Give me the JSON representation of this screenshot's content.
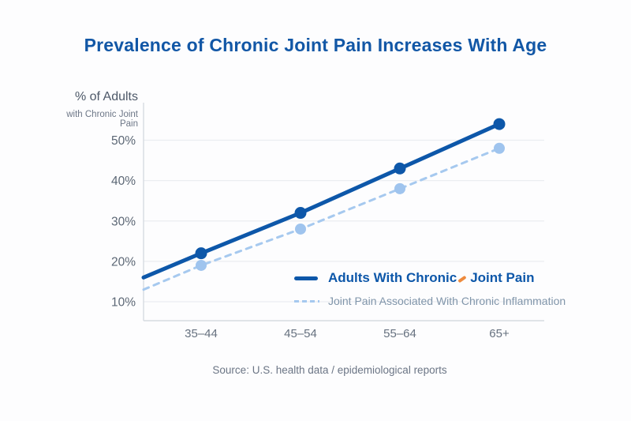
{
  "title": "Prevalence of Chronic Joint Pain Increases With Age",
  "y_axis_heading": {
    "line1": "% of Adults",
    "line2": "with Chronic Joint Pain"
  },
  "legend": {
    "series1_label_before": "Adults With Chronic",
    "series1_label_after": "Joint Pain",
    "series1_full_label": "Adults With Chronic Joint Pain",
    "series2_label": "Joint Pain Associated With Chronic Inflammation"
  },
  "source": "Source: U.S. health data / epidemiological reports",
  "colors": {
    "title_text": "#1257a6",
    "solid_line": "#0d57a9",
    "solid_marker": "#0d57a9",
    "dashed_line": "#a6c9ef",
    "dashed_marker": "#9fc4ee",
    "legend1_text": "#0d57a9",
    "legend2_text": "#8095aa",
    "accent_orange": "#ee8a3d",
    "grid_line": "#ebedf1",
    "axis_line": "#d6dbe1",
    "y_tick_text": "#5c6775",
    "x_tick_text": "#66717f",
    "source_text": "#6b7585"
  },
  "chart_data": {
    "type": "line",
    "title": "Prevalence of Chronic Joint Pain Increases With Age",
    "categories": [
      "35–44",
      "45–54",
      "55–64",
      "65+"
    ],
    "series": [
      {
        "name": "Adults With Chronic Joint Pain",
        "style": "solid",
        "values": [
          22,
          32,
          43,
          54
        ],
        "left_edge_value": 16
      },
      {
        "name": "Joint Pain Associated With Chronic Inflammation",
        "style": "dashed",
        "values": [
          19,
          28,
          38,
          48
        ],
        "left_edge_value": 13
      }
    ],
    "ylabel": "% of Adults with Chronic Joint Pain",
    "yticks": [
      10,
      20,
      30,
      40,
      50
    ],
    "ytick_labels": [
      "10%",
      "20%",
      "30%",
      "40%",
      "50%"
    ],
    "ylim": [
      5.3,
      59.3
    ],
    "unit": "%",
    "grid": "horizontal",
    "legend_position": "inside-lower-right"
  }
}
